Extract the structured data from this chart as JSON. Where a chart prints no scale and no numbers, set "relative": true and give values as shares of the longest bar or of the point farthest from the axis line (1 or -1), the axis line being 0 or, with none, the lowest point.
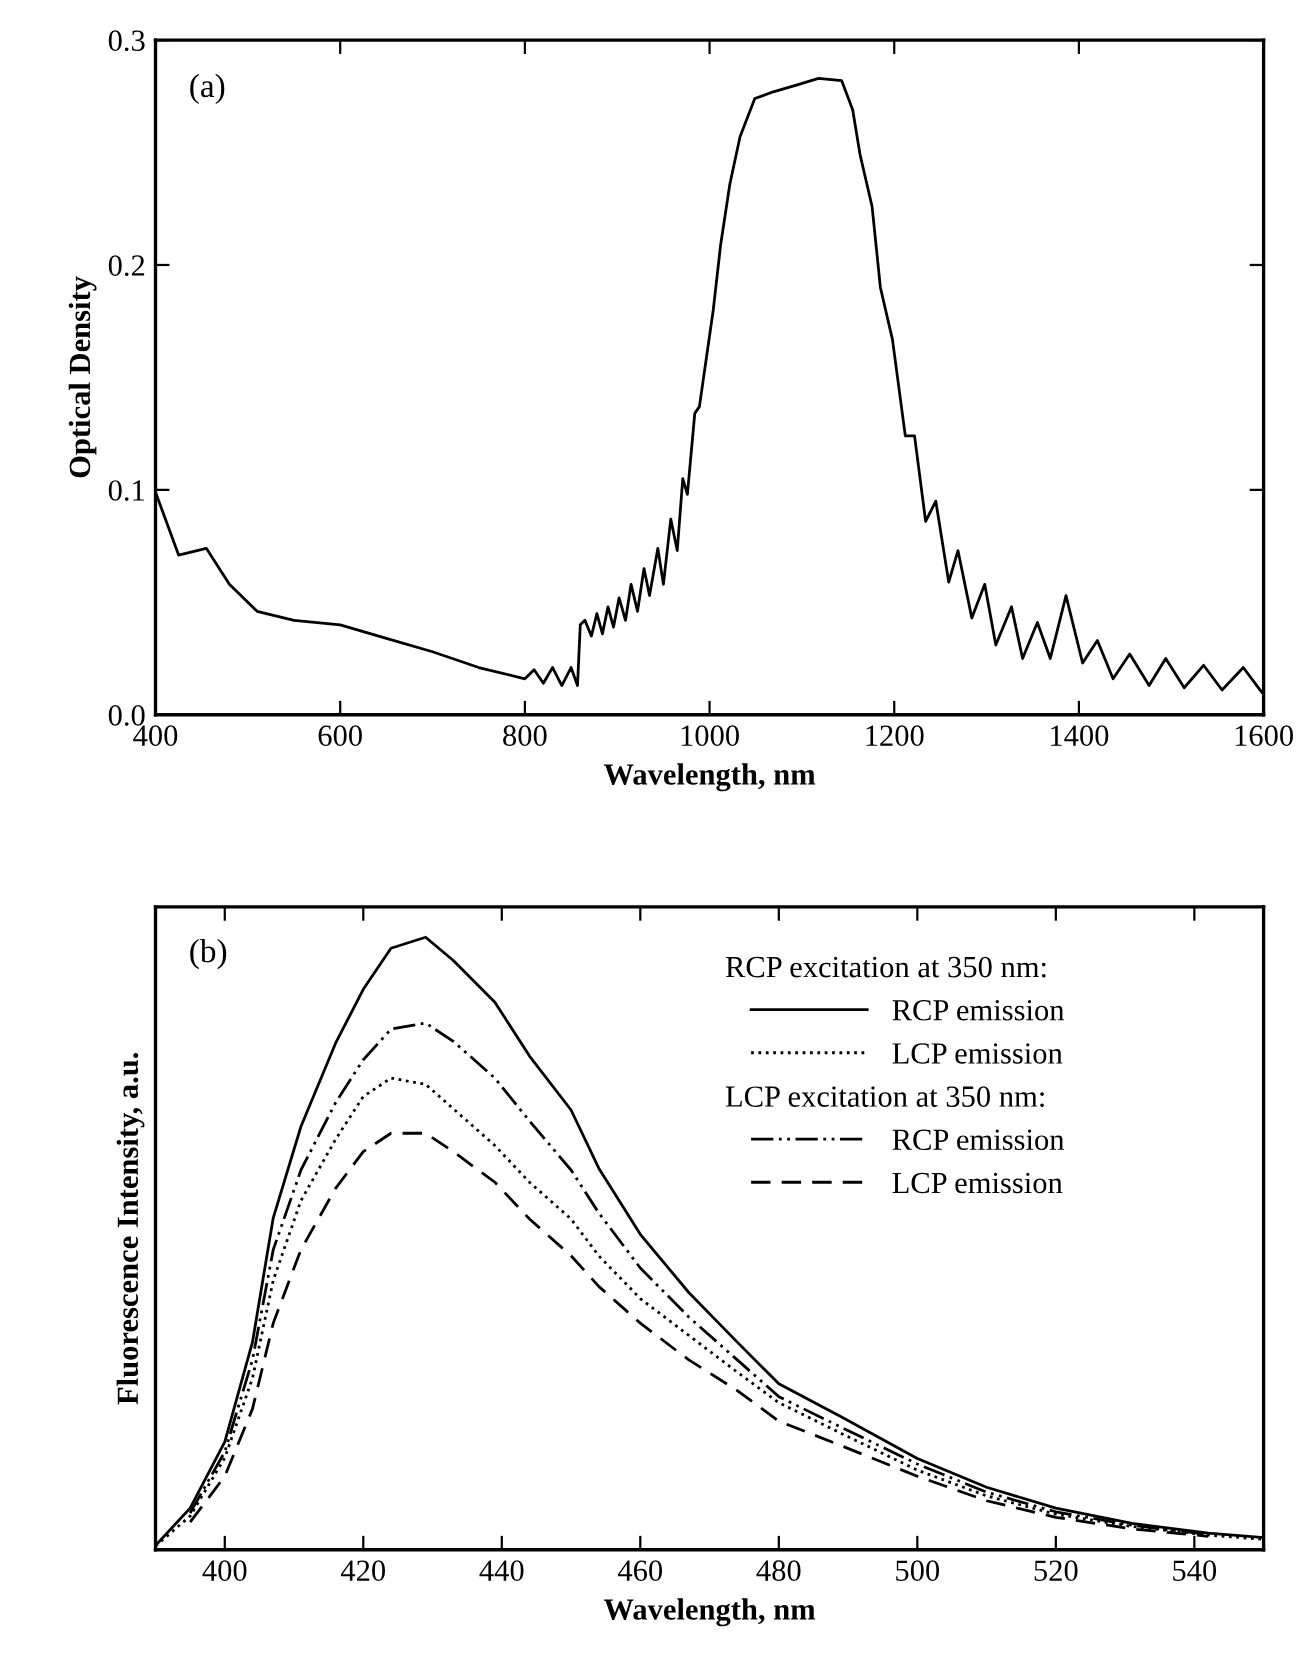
{
  "chart_data": [
    {
      "type": "line",
      "xlabel": "Wavelength, nm",
      "ylabel": "Optical Density",
      "annotations": [
        "(a)"
      ],
      "xlim": [
        400,
        1600
      ],
      "xticks": [
        400,
        600,
        800,
        1000,
        1200,
        1400,
        1600
      ],
      "ylim": [
        0,
        0.3
      ],
      "yticks": [
        {
          "value": 0,
          "label": "0.0"
        },
        0.1,
        0.2,
        0.3
      ],
      "grid": false,
      "legend": false,
      "series": [
        {
          "color": "#000000",
          "line_style": "solid",
          "x": [
            400,
            425,
            455,
            480,
            510,
            550,
            600,
            650,
            700,
            750,
            800,
            810,
            820,
            830,
            840,
            850,
            857,
            860,
            865,
            872,
            878,
            884,
            890,
            896,
            902,
            909,
            915,
            922,
            929,
            935,
            944,
            950,
            958,
            965,
            971,
            976,
            984,
            989,
            1004,
            1012,
            1022,
            1033,
            1049,
            1069,
            1094,
            1118,
            1143,
            1155,
            1163,
            1176,
            1185,
            1198,
            1212,
            1222,
            1234,
            1245,
            1259,
            1269,
            1284,
            1298,
            1310,
            1327,
            1339,
            1355,
            1369,
            1386,
            1404,
            1420,
            1437,
            1455,
            1476,
            1494,
            1514,
            1535,
            1555,
            1578,
            1598
          ],
          "values": [
            0.099,
            0.071,
            0.074,
            0.058,
            0.046,
            0.042,
            0.04,
            0.034,
            0.028,
            0.021,
            0.016,
            0.02,
            0.014,
            0.021,
            0.013,
            0.021,
            0.013,
            0.04,
            0.042,
            0.035,
            0.045,
            0.036,
            0.048,
            0.039,
            0.052,
            0.042,
            0.058,
            0.046,
            0.065,
            0.053,
            0.074,
            0.058,
            0.087,
            0.073,
            0.105,
            0.098,
            0.134,
            0.137,
            0.18,
            0.209,
            0.236,
            0.257,
            0.274,
            0.277,
            0.28,
            0.283,
            0.282,
            0.269,
            0.249,
            0.226,
            0.19,
            0.167,
            0.124,
            0.124,
            0.086,
            0.095,
            0.059,
            0.073,
            0.043,
            0.058,
            0.031,
            0.048,
            0.025,
            0.041,
            0.025,
            0.053,
            0.023,
            0.033,
            0.016,
            0.027,
            0.013,
            0.025,
            0.012,
            0.022,
            0.011,
            0.021,
            0.01
          ]
        }
      ]
    },
    {
      "type": "line",
      "xlabel": "Wavelength, nm",
      "ylabel": "Fluorescence Intensity, a.u.",
      "relative": true,
      "annotations": [
        "(b)",
        "RCP excitation at 350 nm:",
        "LCP excitation at 350 nm:"
      ],
      "xlim": [
        390,
        550
      ],
      "xticks": [
        400,
        420,
        440,
        460,
        480,
        500,
        520,
        540
      ],
      "grid": false,
      "legend": "top right",
      "x": [
        390,
        395,
        400,
        404,
        407,
        411,
        416,
        420,
        424,
        429,
        433,
        439,
        444,
        450,
        454,
        460,
        467,
        474,
        480,
        489,
        500,
        510,
        520,
        531,
        542,
        550
      ],
      "series": [
        {
          "name": "RCP emission",
          "color": "#000000",
          "line_style": "solid",
          "values": [
            0.007,
            0.068,
            0.176,
            0.339,
            0.542,
            0.691,
            0.827,
            0.915,
            0.982,
            1.0,
            0.962,
            0.894,
            0.806,
            0.718,
            0.623,
            0.515,
            0.42,
            0.339,
            0.271,
            0.217,
            0.149,
            0.102,
            0.068,
            0.043,
            0.027,
            0.02
          ]
        },
        {
          "name": "LCP emission",
          "color": "#000000",
          "line_style": "dotted",
          "values": [
            0.006,
            0.055,
            0.15,
            0.28,
            0.44,
            0.57,
            0.67,
            0.74,
            0.77,
            0.76,
            0.72,
            0.66,
            0.6,
            0.54,
            0.48,
            0.41,
            0.35,
            0.29,
            0.24,
            0.19,
            0.13,
            0.088,
            0.058,
            0.038,
            0.024,
            0.017
          ]
        },
        {
          "name": "RCP emission",
          "color": "#000000",
          "line_style": "dashdot",
          "x": [
            395,
            400,
            404,
            407,
            411,
            416,
            420,
            424,
            429,
            433,
            439,
            444,
            450,
            454,
            460,
            467,
            474,
            480,
            489,
            500,
            510,
            520,
            531,
            542
          ],
          "values": [
            0.06,
            0.16,
            0.31,
            0.49,
            0.62,
            0.73,
            0.8,
            0.85,
            0.86,
            0.83,
            0.77,
            0.7,
            0.62,
            0.55,
            0.46,
            0.38,
            0.31,
            0.25,
            0.2,
            0.14,
            0.094,
            0.062,
            0.04,
            0.025
          ]
        },
        {
          "name": "LCP emission",
          "color": "#000000",
          "line_style": "dashed",
          "x": [
            395,
            400,
            404,
            407,
            411,
            416,
            420,
            424,
            429,
            433,
            439,
            444,
            450,
            454,
            460,
            467,
            474,
            480,
            489,
            500,
            510,
            520,
            531,
            542
          ],
          "values": [
            0.045,
            0.12,
            0.23,
            0.37,
            0.49,
            0.59,
            0.65,
            0.68,
            0.68,
            0.65,
            0.6,
            0.54,
            0.48,
            0.43,
            0.37,
            0.31,
            0.26,
            0.21,
            0.17,
            0.12,
            0.08,
            0.053,
            0.034,
            0.022
          ]
        }
      ]
    }
  ]
}
